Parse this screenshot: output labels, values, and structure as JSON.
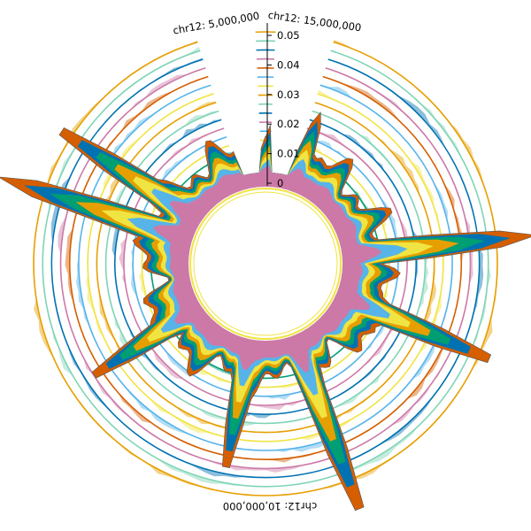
{
  "chart_data": {
    "type": "area",
    "layout": "circular",
    "genome_labels": [
      "chr12: 5,000,000",
      "chr12: 15,000,000",
      "chr12: 10,000,000"
    ],
    "y_axis": {
      "ticks": [
        0,
        0.01,
        0.02,
        0.03,
        0.04,
        0.05
      ],
      "tick_labels": [
        "0",
        "0.01",
        "0.02",
        "0.03",
        "0.04",
        "0.05"
      ],
      "range": [
        0,
        0.05
      ]
    },
    "colors": {
      "orange": "#e69f00",
      "sky_blue": "#56b4e9",
      "green": "#009e73",
      "yellow": "#f0e442",
      "blue": "#0072b2",
      "vermillion": "#d55e00",
      "pink": "#cc79a7",
      "mint": "#7fd4b5",
      "light_orange": "#f7c873"
    },
    "stacked_series_colors": [
      "#d55e00",
      "#0072b2",
      "#009e73",
      "#e69f00",
      "#f0e442",
      "#56b4e9",
      "#cc79a7"
    ],
    "stacked_peaks": [
      {
        "angle_deg": 5,
        "value": 0.027
      },
      {
        "angle_deg": 20,
        "value": 0.024
      },
      {
        "angle_deg": 84,
        "value": 0.062
      },
      {
        "angle_deg": 113,
        "value": 0.055
      },
      {
        "angle_deg": 159,
        "value": 0.062
      },
      {
        "angle_deg": 191,
        "value": 0.042
      },
      {
        "angle_deg": 237,
        "value": 0.041
      },
      {
        "angle_deg": 288,
        "value": 0.065
      },
      {
        "angle_deg": 303,
        "value": 0.055
      }
    ],
    "ring_track_colors": [
      "#e69f00",
      "#7fd4b5",
      "#0072b2",
      "#cc79a7",
      "#d55e00",
      "#56b4e9",
      "#f0e442",
      "#e69f00",
      "#7fd4b5",
      "#0072b2",
      "#cc79a7",
      "#56b4e9",
      "#f0e442",
      "#009e73"
    ]
  }
}
